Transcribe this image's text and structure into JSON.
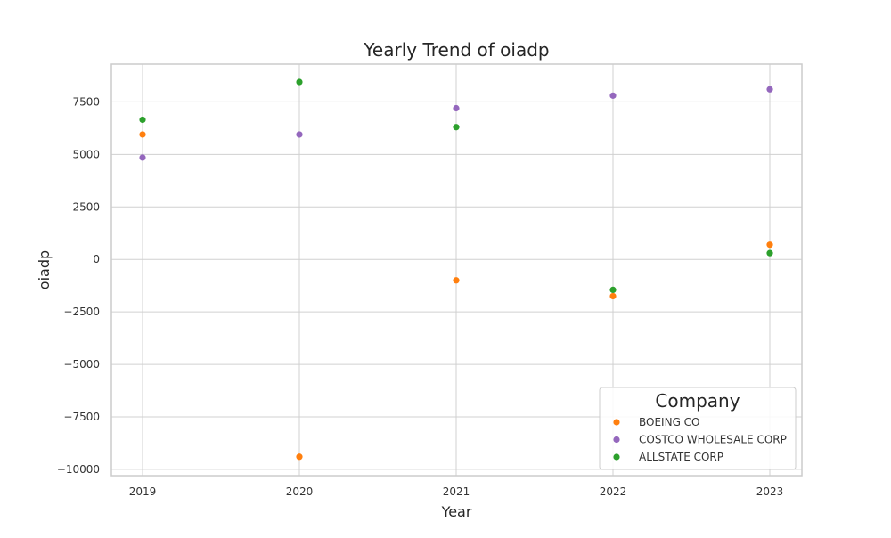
{
  "chart_data": {
    "type": "scatter",
    "title": "Yearly Trend of oiadp",
    "xlabel": "Year",
    "ylabel": "oiadp",
    "x": [
      2019,
      2020,
      2021,
      2022,
      2023
    ],
    "x_tick_labels": [
      "2019",
      "2020",
      "2021",
      "2022",
      "2023"
    ],
    "ylim": [
      -10300,
      9300
    ],
    "y_ticks": [
      -10000,
      -7500,
      -5000,
      -2500,
      0,
      2500,
      5000,
      7500
    ],
    "y_tick_labels": [
      "−10000",
      "−7500",
      "−5000",
      "−2500",
      "0",
      "2500",
      "5000",
      "7500"
    ],
    "grid": true,
    "legend": {
      "title": "Company",
      "position": "lower-right"
    },
    "series": [
      {
        "name": "BOEING CO",
        "color": "#ff7f0e",
        "values": [
          5950,
          -9400,
          -1000,
          -1750,
          700
        ]
      },
      {
        "name": "COSTCO WHOLESALE CORP",
        "color": "#9467bd",
        "values": [
          4850,
          5950,
          7200,
          7800,
          8100
        ]
      },
      {
        "name": "ALLSTATE CORP",
        "color": "#2ca02c",
        "values": [
          6650,
          8450,
          6300,
          -1450,
          300
        ]
      }
    ]
  }
}
